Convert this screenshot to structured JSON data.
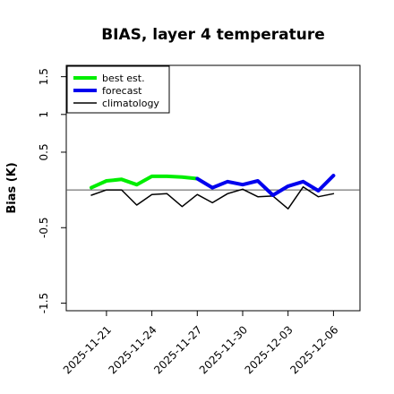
{
  "chart_data": {
    "type": "line",
    "title": "BIAS, layer 4 temperature",
    "xlabel": "",
    "ylabel": "Bias (K)",
    "ylim": [
      -1.6,
      1.65
    ],
    "y_ticks": [
      -1.5,
      -0.5,
      0.5,
      1.0,
      1.5
    ],
    "x_tick_labels": [
      "2025-11-21",
      "2025-11-24",
      "2025-11-27",
      "2025-11-30",
      "2025-12-03",
      "2025-12-06"
    ],
    "highlighted_tick": "2025-11-27",
    "highlight_color": "#008000",
    "zero_line": true,
    "grid": false,
    "legend_position": "top-left",
    "x_dates": [
      "2025-11-20",
      "2025-11-21",
      "2025-11-22",
      "2025-11-23",
      "2025-11-24",
      "2025-11-25",
      "2025-11-26",
      "2025-11-27",
      "2025-11-28",
      "2025-11-29",
      "2025-11-30",
      "2025-12-01",
      "2025-12-02",
      "2025-12-03",
      "2025-12-04",
      "2025-12-05",
      "2025-12-06"
    ],
    "series": [
      {
        "name": "best est.",
        "color": "#00ee00",
        "values": [
          0.03,
          0.12,
          0.14,
          0.07,
          0.18,
          0.18,
          0.17,
          0.15,
          null,
          null,
          null,
          null,
          null,
          null,
          null,
          null,
          null
        ]
      },
      {
        "name": "forecast",
        "color": "#0000ee",
        "values": [
          null,
          null,
          null,
          null,
          null,
          null,
          null,
          0.15,
          0.03,
          0.11,
          0.07,
          0.12,
          -0.07,
          0.05,
          0.11,
          -0.01,
          0.19
        ]
      },
      {
        "name": "climatology",
        "color": "#000000",
        "values": [
          -0.07,
          0.0,
          0.0,
          -0.2,
          -0.06,
          -0.05,
          -0.22,
          -0.06,
          -0.17,
          -0.05,
          0.01,
          -0.09,
          -0.08,
          -0.25,
          0.04,
          -0.09,
          -0.05
        ]
      }
    ]
  }
}
